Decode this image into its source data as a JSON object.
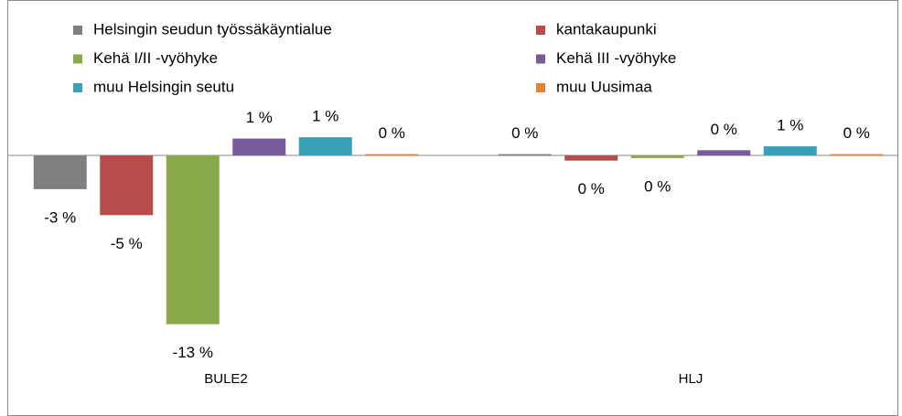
{
  "chart_data": {
    "type": "bar",
    "categories": [
      "BULE2",
      "HLJ"
    ],
    "series": [
      {
        "name": "Helsingin seudun työssäkäyntialue",
        "color": "#7f7f7f",
        "values": [
          -2.6,
          0.1
        ],
        "value_labels": [
          "-3 %",
          "0 %"
        ]
      },
      {
        "name": "kantakaupunki",
        "color": "#b84c4a",
        "values": [
          -4.6,
          -0.4
        ],
        "value_labels": [
          "-5 %",
          "0 %"
        ]
      },
      {
        "name": "Kehä I/II -vyöhyke",
        "color": "#8aa94b",
        "values": [
          -13.0,
          -0.2
        ],
        "value_labels": [
          "-13 %",
          "0 %"
        ]
      },
      {
        "name": "Kehä III -vyöhyke",
        "color": "#7a5b9a",
        "values": [
          1.3,
          0.4
        ],
        "value_labels": [
          "1 %",
          "0 %"
        ]
      },
      {
        "name": "muu Helsingin seutu",
        "color": "#3aa0b8",
        "values": [
          1.4,
          0.7
        ],
        "value_labels": [
          "1 %",
          "1 %"
        ]
      },
      {
        "name": "muu Uusimaa",
        "color": "#e0843a",
        "values": [
          0.1,
          0.1
        ],
        "value_labels": [
          "0 %",
          "0 %"
        ]
      }
    ]
  }
}
